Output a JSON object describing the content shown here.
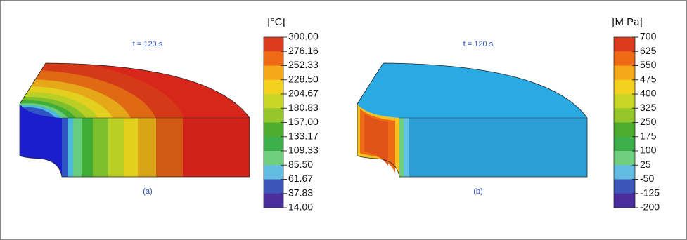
{
  "panels": [
    {
      "time_label": "t = 120 s",
      "caption": "(a)",
      "colorbar": {
        "unit": "[°C]",
        "ticks": [
          "300.00",
          "276.16",
          "252.33",
          "228.50",
          "204.67",
          "180.83",
          "157.00",
          "133.17",
          "109.33",
          "85.50",
          "61.67",
          "37.83",
          "14.00"
        ],
        "colors": [
          "#dc3b1e",
          "#ee6a14",
          "#f5a81a",
          "#f2d21f",
          "#c9d525",
          "#95c72a",
          "#4cad2f",
          "#3cae4a",
          "#70cf7f",
          "#63bde3",
          "#3c55b8",
          "#4a2c9c"
        ]
      }
    },
    {
      "time_label": "t = 120 s",
      "caption": "(b)",
      "colorbar": {
        "unit": "[M Pa]",
        "ticks": [
          "700",
          "625",
          "550",
          "475",
          "400",
          "325",
          "250",
          "175",
          "100",
          "25",
          "-50",
          "-125",
          "-200"
        ],
        "colors": [
          "#dc3b1e",
          "#ee6a14",
          "#f5a81a",
          "#f2d21f",
          "#c9d525",
          "#95c72a",
          "#4cad2f",
          "#3cae4a",
          "#70cf7f",
          "#63bde3",
          "#3c55b8",
          "#4a2c9c"
        ]
      }
    }
  ]
}
